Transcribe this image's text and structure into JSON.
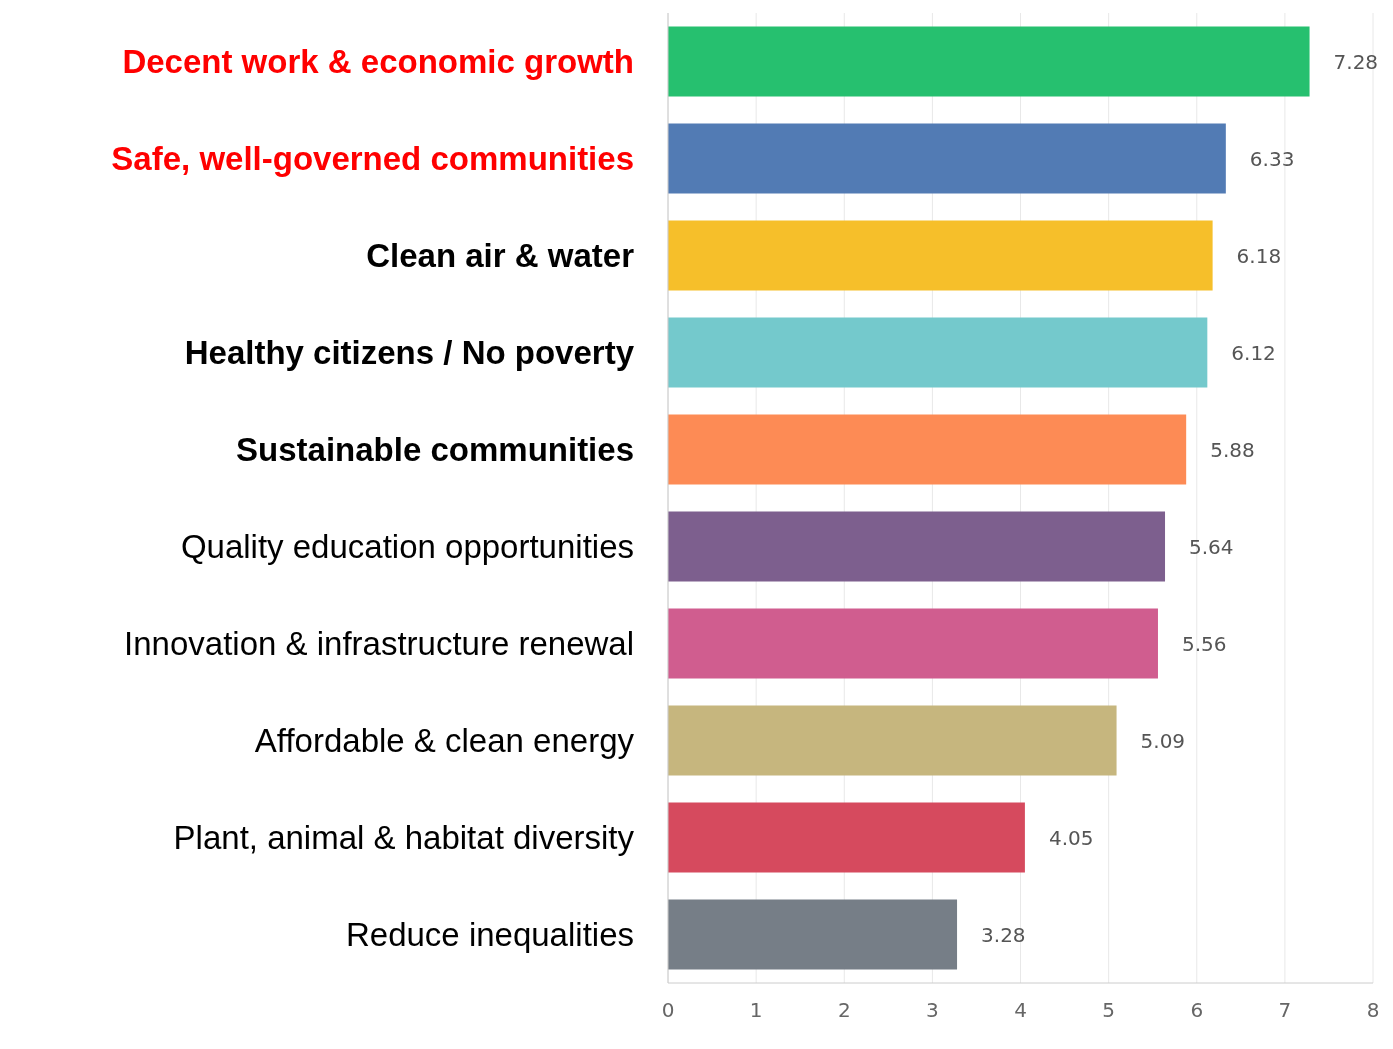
{
  "chart_data": {
    "type": "bar",
    "orientation": "horizontal",
    "categories": [
      "Decent work & economic growth",
      "Safe, well-governed communities",
      "Clean air & water",
      "Healthy citizens / No poverty",
      "Sustainable communities",
      "Quality education opportunities",
      "Innovation & infrastructure renewal",
      "Affordable & clean energy",
      "Plant, animal & habitat diversity",
      "Reduce inequalities"
    ],
    "values": [
      7.28,
      6.33,
      6.18,
      6.12,
      5.88,
      5.64,
      5.56,
      5.09,
      4.05,
      3.28
    ],
    "colors": [
      "#26c06f",
      "#527bb4",
      "#f6bf2a",
      "#74c9cc",
      "#fd8b55",
      "#7d5f8e",
      "#d05d8f",
      "#c6b67e",
      "#d64a5e",
      "#767e87"
    ],
    "xlim": [
      0,
      8
    ],
    "xticks": [
      0,
      1,
      2,
      3,
      4,
      5,
      6,
      7,
      8
    ],
    "grid": "x",
    "data_labels": true
  }
}
